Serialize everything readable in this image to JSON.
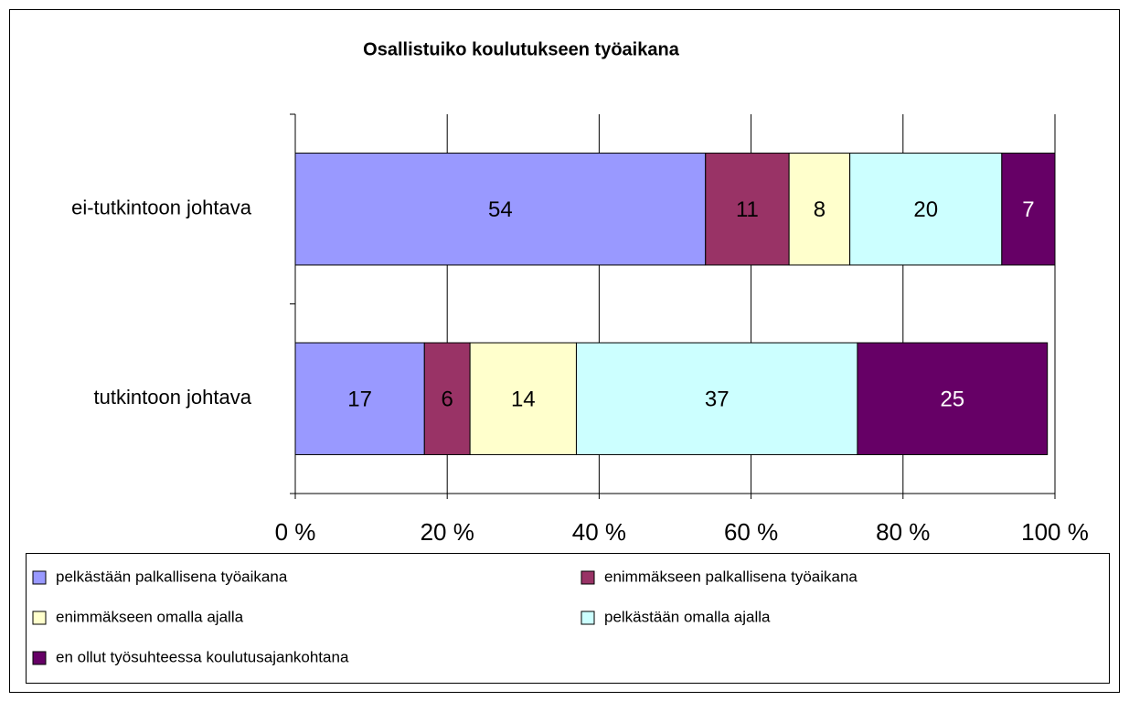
{
  "chart_data": {
    "type": "stacked-barh",
    "title": "Osallistuiko koulutukseen työaikana",
    "categories": [
      "ei-tutkintoon johtava",
      "tutkintoon johtava"
    ],
    "series": [
      {
        "name": "pelkästään palkallisena työaikana",
        "color": "#9999ff",
        "values": [
          54,
          17
        ]
      },
      {
        "name": "enimmäkseen palkallisena työaikana",
        "color": "#993366",
        "values": [
          11,
          6
        ]
      },
      {
        "name": "enimmäkseen omalla ajalla",
        "color": "#ffffcc",
        "values": [
          8,
          14
        ]
      },
      {
        "name": "pelkästään omalla ajalla",
        "color": "#ccffff",
        "values": [
          20,
          37
        ]
      },
      {
        "name": "en ollut työsuhteessa koulutusajankohtana",
        "color": "#660066",
        "values": [
          7,
          25
        ]
      }
    ],
    "xlim": [
      0,
      100
    ],
    "xticks": [
      {
        "value": 0,
        "label": "0 %"
      },
      {
        "value": 20,
        "label": "20 %"
      },
      {
        "value": 40,
        "label": "40 %"
      },
      {
        "value": 60,
        "label": "60 %"
      },
      {
        "value": 80,
        "label": "80 %"
      },
      {
        "value": 100,
        "label": "100 %"
      }
    ],
    "grid": true,
    "legend": "bottom"
  }
}
